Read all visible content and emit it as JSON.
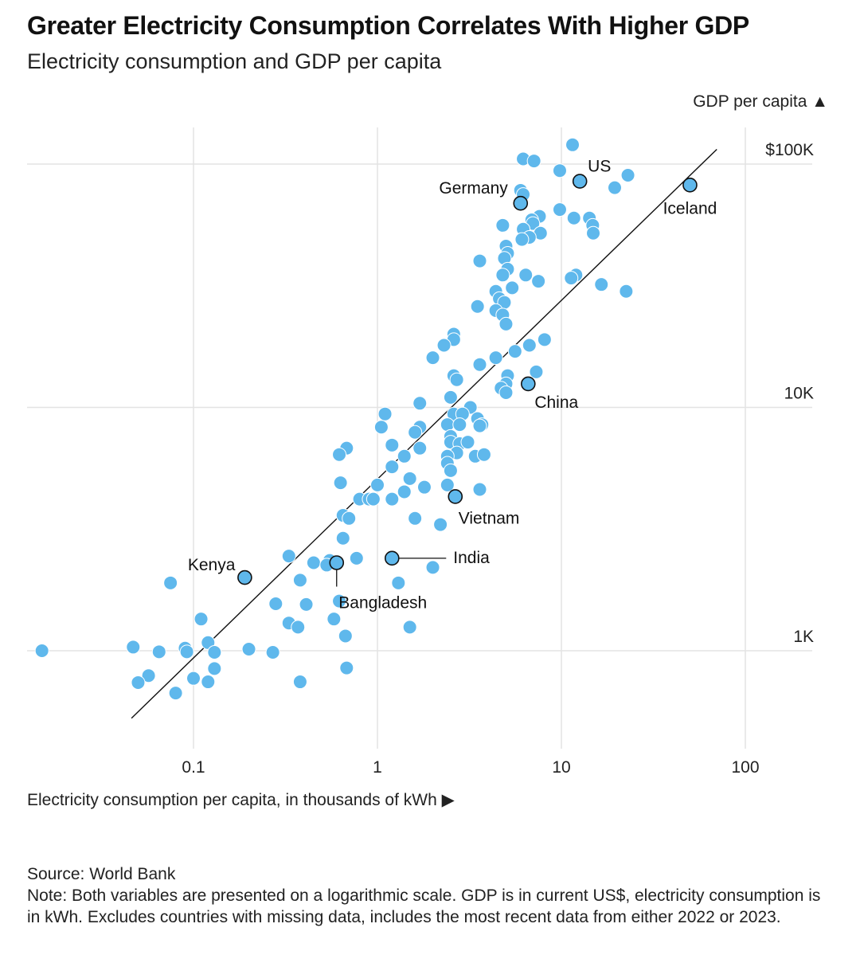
{
  "title": "Greater Electricity Consumption Correlates With Higher GDP",
  "subtitle": "Electricity consumption and GDP per capita",
  "source": "Source: World Bank",
  "note": "Note: Both variables are presented on a logarithmic scale. GDP is in current US$, electricity consumption is in kWh. Excludes countries with missing data, includes the most recent data from either 2022 or 2023.",
  "colors": {
    "dot": "#5fb8ec",
    "dot_highlight_stroke": "#111111",
    "grid": "#e3e3e3",
    "trend": "#111111"
  },
  "chart_data": {
    "type": "scatter",
    "xscale": "log",
    "yscale": "log",
    "xlabel": "Electricity consumption per capita, in thousands of kWh ▶",
    "ylabel": "GDP per capita ▲",
    "xlim": [
      0.0135,
      350
    ],
    "ylim": [
      410,
      170000
    ],
    "xticks": [
      {
        "v": 0.1,
        "label": "0.1"
      },
      {
        "v": 1,
        "label": "1"
      },
      {
        "v": 10,
        "label": "10"
      },
      {
        "v": 100,
        "label": "100"
      }
    ],
    "yticks": [
      {
        "v": 1000,
        "label": "1K"
      },
      {
        "v": 10000,
        "label": "10K"
      },
      {
        "v": 100000,
        "label": "$100K"
      }
    ],
    "trendline": [
      [
        0.046,
        528
      ],
      [
        70,
        115000
      ]
    ],
    "highlighted": [
      {
        "name": "US",
        "x": 12.6,
        "y": 85000
      },
      {
        "name": "Germany",
        "x": 6.0,
        "y": 69000
      },
      {
        "name": "Iceland",
        "x": 50,
        "y": 82000
      },
      {
        "name": "China",
        "x": 6.6,
        "y": 12500
      },
      {
        "name": "Vietnam",
        "x": 2.65,
        "y": 4300
      },
      {
        "name": "India",
        "x": 1.2,
        "y": 2400
      },
      {
        "name": "Bangladesh",
        "x": 0.6,
        "y": 2300
      },
      {
        "name": "Kenya",
        "x": 0.19,
        "y": 2000
      }
    ],
    "points": [
      [
        11.5,
        120000
      ],
      [
        6.2,
        105000
      ],
      [
        7.1,
        103000
      ],
      [
        9.8,
        94000
      ],
      [
        23,
        90000
      ],
      [
        19.5,
        80000
      ],
      [
        6.0,
        78000
      ],
      [
        6.2,
        75000
      ],
      [
        9.8,
        65000
      ],
      [
        7.6,
        61000
      ],
      [
        14.2,
        60000
      ],
      [
        11.7,
        60000
      ],
      [
        6.9,
        59000
      ],
      [
        7.0,
        57000
      ],
      [
        4.8,
        56000
      ],
      [
        6.2,
        54000
      ],
      [
        14.8,
        56000
      ],
      [
        14.9,
        52000
      ],
      [
        7.7,
        52000
      ],
      [
        6.7,
        50000
      ],
      [
        6.1,
        49000
      ],
      [
        5.0,
        46000
      ],
      [
        5.1,
        43000
      ],
      [
        3.6,
        40000
      ],
      [
        4.9,
        41000
      ],
      [
        5.1,
        37000
      ],
      [
        4.8,
        35000
      ],
      [
        6.4,
        35000
      ],
      [
        7.5,
        33000
      ],
      [
        12.0,
        35000
      ],
      [
        16.5,
        32000
      ],
      [
        22.5,
        30000
      ],
      [
        11.3,
        34000
      ],
      [
        4.4,
        30000
      ],
      [
        5.4,
        31000
      ],
      [
        4.6,
        28000
      ],
      [
        4.9,
        27000
      ],
      [
        3.5,
        26000
      ],
      [
        4.4,
        25000
      ],
      [
        4.8,
        24000
      ],
      [
        5.0,
        22000
      ],
      [
        2.6,
        20000
      ],
      [
        2.6,
        19000
      ],
      [
        2.3,
        18000
      ],
      [
        8.1,
        19000
      ],
      [
        6.7,
        18000
      ],
      [
        5.6,
        17000
      ],
      [
        4.4,
        16000
      ],
      [
        2.0,
        16000
      ],
      [
        3.6,
        15000
      ],
      [
        7.3,
        14000
      ],
      [
        2.6,
        13500
      ],
      [
        2.7,
        13000
      ],
      [
        5.1,
        13500
      ],
      [
        5.0,
        12500
      ],
      [
        4.7,
        12000
      ],
      [
        5.0,
        11500
      ],
      [
        2.5,
        11000
      ],
      [
        1.7,
        10400
      ],
      [
        3.2,
        10000
      ],
      [
        2.6,
        9400
      ],
      [
        1.1,
        9400
      ],
      [
        2.9,
        9400
      ],
      [
        3.5,
        9000
      ],
      [
        2.4,
        8500
      ],
      [
        2.8,
        8500
      ],
      [
        3.7,
        8500
      ],
      [
        1.05,
        8300
      ],
      [
        1.7,
        8300
      ],
      [
        3.6,
        8400
      ],
      [
        1.6,
        7900
      ],
      [
        2.5,
        7600
      ],
      [
        2.5,
        7200
      ],
      [
        2.8,
        7100
      ],
      [
        3.1,
        7200
      ],
      [
        1.2,
        7000
      ],
      [
        0.68,
        6800
      ],
      [
        1.7,
        6800
      ],
      [
        2.7,
        6500
      ],
      [
        0.62,
        6400
      ],
      [
        1.4,
        6300
      ],
      [
        3.4,
        6300
      ],
      [
        3.8,
        6400
      ],
      [
        2.4,
        6300
      ],
      [
        2.4,
        5900
      ],
      [
        1.2,
        5700
      ],
      [
        2.5,
        5500
      ],
      [
        1.5,
        5100
      ],
      [
        0.63,
        4900
      ],
      [
        1.0,
        4800
      ],
      [
        2.4,
        4800
      ],
      [
        1.8,
        4700
      ],
      [
        1.4,
        4500
      ],
      [
        3.6,
        4600
      ],
      [
        0.8,
        4200
      ],
      [
        0.9,
        4200
      ],
      [
        0.95,
        4200
      ],
      [
        1.2,
        4200
      ],
      [
        0.65,
        3600
      ],
      [
        0.7,
        3500
      ],
      [
        1.6,
        3500
      ],
      [
        2.2,
        3300
      ],
      [
        0.65,
        2900
      ],
      [
        0.33,
        2450
      ],
      [
        0.45,
        2300
      ],
      [
        0.55,
        2350
      ],
      [
        0.53,
        2250
      ],
      [
        0.77,
        2400
      ],
      [
        2.0,
        2200
      ],
      [
        0.075,
        1900
      ],
      [
        0.38,
        1950
      ],
      [
        1.3,
        1900
      ],
      [
        0.28,
        1560
      ],
      [
        0.41,
        1550
      ],
      [
        0.62,
        1600
      ],
      [
        0.11,
        1350
      ],
      [
        0.33,
        1300
      ],
      [
        0.37,
        1250
      ],
      [
        0.58,
        1350
      ],
      [
        1.5,
        1250
      ],
      [
        0.67,
        1150
      ],
      [
        0.015,
        1000
      ],
      [
        0.047,
        1035
      ],
      [
        0.065,
        990
      ],
      [
        0.09,
        1025
      ],
      [
        0.092,
        990
      ],
      [
        0.12,
        1080
      ],
      [
        0.13,
        985
      ],
      [
        0.2,
        1015
      ],
      [
        0.27,
        985
      ],
      [
        0.68,
        850
      ],
      [
        0.13,
        845
      ],
      [
        0.057,
        790
      ],
      [
        0.1,
        770
      ],
      [
        0.05,
        740
      ],
      [
        0.12,
        745
      ],
      [
        0.38,
        745
      ],
      [
        0.08,
        670
      ]
    ]
  }
}
